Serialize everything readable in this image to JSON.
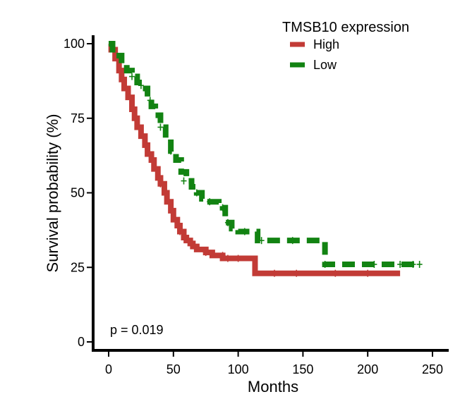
{
  "chart_data": {
    "type": "line",
    "subtype": "kaplan-meier",
    "title": "",
    "xlabel": "Months",
    "ylabel": "Survival probability (%)",
    "xlim": [
      -5,
      255
    ],
    "ylim": [
      0,
      100
    ],
    "x_ticks": [
      0,
      50,
      100,
      150,
      200,
      250
    ],
    "x_tick_labels": [
      "0",
      "50",
      "100",
      "150",
      "200",
      "250"
    ],
    "y_ticks": [
      0,
      25,
      50,
      75,
      100
    ],
    "y_tick_labels": [
      "0",
      "25",
      "50",
      "75",
      "100"
    ],
    "legend": {
      "title": "TMSB10 expression",
      "position": "top-right"
    },
    "annotation": "p = 0.019",
    "series": [
      {
        "name": "High",
        "color": "#c23b36",
        "dash": "solid",
        "x": [
          0,
          2,
          5,
          8,
          10,
          12,
          15,
          18,
          20,
          22,
          25,
          28,
          30,
          33,
          35,
          38,
          40,
          43,
          45,
          48,
          50,
          53,
          55,
          58,
          60,
          63,
          65,
          68,
          70,
          75,
          80,
          88,
          95,
          100,
          105,
          112,
          113,
          150,
          200,
          225
        ],
        "y": [
          100,
          98,
          95,
          91,
          88,
          85,
          82,
          78,
          75,
          72,
          69,
          66,
          63,
          61,
          58,
          55,
          53,
          50,
          47,
          44,
          41,
          39,
          37,
          35,
          34,
          33,
          32,
          31,
          31,
          30,
          29,
          28,
          28,
          28,
          28,
          28,
          23,
          23,
          23,
          23
        ],
        "censor_x": [
          40,
          55,
          75,
          88,
          92,
          100,
          128,
          145,
          175,
          200
        ],
        "censor_y": [
          53,
          37,
          30,
          29,
          28,
          28,
          23,
          23,
          23,
          23
        ]
      },
      {
        "name": "Low",
        "color": "#128312",
        "dash": "dashed",
        "x": [
          0,
          3,
          6,
          10,
          14,
          18,
          22,
          26,
          30,
          33,
          36,
          40,
          44,
          48,
          52,
          56,
          60,
          64,
          68,
          72,
          76,
          80,
          85,
          88,
          90,
          95,
          100,
          105,
          110,
          115,
          120,
          130,
          150,
          165,
          167,
          180,
          200,
          240
        ],
        "y": [
          100,
          98,
          96,
          93,
          91,
          89,
          87,
          85,
          82,
          79,
          76,
          72,
          68,
          64,
          61,
          57,
          54,
          52,
          50,
          48,
          47,
          47,
          46,
          45,
          40,
          38,
          37,
          37,
          37,
          34,
          34,
          34,
          34,
          34,
          26,
          26,
          26,
          26
        ],
        "censor_x": [
          18,
          25,
          32,
          40,
          48,
          58,
          68,
          78,
          88,
          92,
          105,
          118,
          142,
          167,
          205,
          225,
          235,
          240
        ],
        "censor_y": [
          89,
          86,
          81,
          72,
          64,
          54,
          50,
          47,
          45,
          40,
          37,
          34,
          34,
          26,
          26,
          26,
          26,
          26
        ]
      }
    ]
  }
}
